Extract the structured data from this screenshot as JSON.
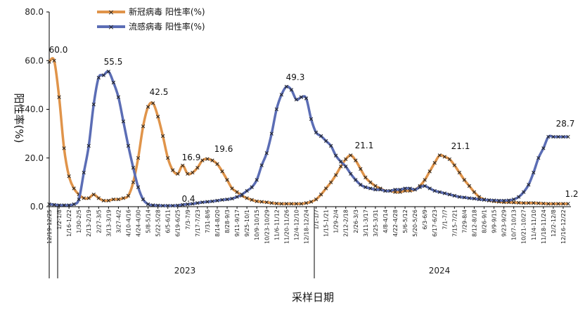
{
  "chart_data": {
    "type": "line",
    "xlabel": "采样日期",
    "ylabel": "阳性率(%)",
    "ylim": [
      0,
      80
    ],
    "yticks": [
      "0.0",
      "20.0",
      "40.0",
      "60.0",
      "80.0"
    ],
    "legend_position": "top-left",
    "grid": false,
    "years": [
      "2023",
      "2024"
    ],
    "categories": [
      "2022-12-19",
      "2022-12-26",
      "2023-01-02",
      "2023-01-09",
      "2023-01-16",
      "2023-01-23",
      "2023-01-30",
      "2023-02-06",
      "2023-02-13",
      "2023-02-20",
      "2023-02-27",
      "2023-03-06",
      "2023-03-13",
      "2023-03-20",
      "2023-03-27",
      "2023-04-03",
      "2023-04-10",
      "2023-04-17",
      "2023-04-24",
      "2023-05-01",
      "2023-05-08",
      "2023-05-15",
      "2023-05-22",
      "2023-05-29",
      "2023-06-05",
      "2023-06-12",
      "2023-06-19",
      "2023-06-26",
      "2023-07-03",
      "2023-07-10",
      "2023-07-17",
      "2023-07-24",
      "2023-07-31",
      "2023-08-07",
      "2023-08-14",
      "2023-08-21",
      "2023-08-28",
      "2023-09-04",
      "2023-09-11",
      "2023-09-18",
      "2023-09-25",
      "2023-10-02",
      "2023-10-09",
      "2023-10-16",
      "2023-10-23",
      "2023-10-30",
      "2023-11-06",
      "2023-11-13",
      "2023-11-20",
      "2023-11-27",
      "2023-12-04",
      "2023-12-11",
      "2023-12-18",
      "2023-12-25",
      "2024-01-01",
      "2024-01-08",
      "2024-01-15",
      "2024-01-22",
      "2024-01-29",
      "2024-02-05",
      "2024-02-12",
      "2024-02-19",
      "2024-02-26",
      "2024-03-04",
      "2024-03-11",
      "2024-03-18",
      "2024-03-25",
      "2024-04-01",
      "2024-04-08",
      "2024-04-15",
      "2024-04-22",
      "2024-04-29",
      "2024-05-06",
      "2024-05-13",
      "2024-05-20",
      "2024-05-27",
      "2024-06-03",
      "2024-06-10",
      "2024-06-17",
      "2024-06-24",
      "2024-07-01",
      "2024-07-08",
      "2024-07-15",
      "2024-07-22",
      "2024-07-29",
      "2024-08-05",
      "2024-08-12",
      "2024-08-19",
      "2024-08-26",
      "2024-09-02",
      "2024-09-09",
      "2024-09-16",
      "2024-09-23",
      "2024-09-30",
      "2024-10-07",
      "2024-10-14",
      "2024-10-21",
      "2024-10-28",
      "2024-11-04",
      "2024-11-11",
      "2024-11-18",
      "2024-11-25",
      "2024-12-02",
      "2024-12-09",
      "2024-12-16",
      "2024-12-23"
    ],
    "tick_labels": [
      "12/19-12/25",
      "1/2-1/8",
      "1/16-1/22",
      "1/30-2/5",
      "2/13-2/19",
      "2/27-3/5",
      "3/13-3/19",
      "3/27-4/2",
      "4/10-4/16",
      "4/24-4/30",
      "5/8-5/14",
      "5/22-5/28",
      "6/5-6/11",
      "6/19-6/25",
      "7/3-7/9",
      "7/17-7/23",
      "7/31-8/6",
      "8/14-8/20",
      "8/28-9/3",
      "9/11-9/17",
      "9/25-10/1",
      "10/9-10/15",
      "10/23-10/29",
      "11/6-11/12",
      "11/20-11/26",
      "12/4-12/10",
      "12/18-12/24",
      "1/1-1/7",
      "1/15-1/21",
      "1/29-2/4",
      "2/12-2/18",
      "2/26-3/3",
      "3/11-3/17",
      "3/25-3/31",
      "4/8-4/14",
      "4/22-4/28",
      "5/6-5/12",
      "5/20-5/26",
      "6/3-6/9",
      "6/17-6/23",
      "7/1-7/7",
      "7/15-7/21",
      "7/29-8/4",
      "8/12-8/18",
      "8/26-9/1",
      "9/9-9/15",
      "9/23-9/29",
      "10/7-10/13",
      "10/21-10/27",
      "11/4-11/10",
      "11/18-11/24",
      "12/2-12/8",
      "12/16-12/22"
    ],
    "series": [
      {
        "name": "新冠病毒 阳性率(%)",
        "color": "#e0944a",
        "marker": "x",
        "values": [
          59.5,
          60.0,
          45.0,
          24.0,
          12.5,
          7.5,
          5.0,
          3.5,
          3.5,
          5.0,
          3.5,
          2.5,
          2.5,
          3.0,
          3.0,
          3.5,
          4.5,
          10.0,
          20.0,
          33.0,
          41.0,
          42.5,
          37.0,
          29.0,
          20.0,
          15.0,
          13.5,
          16.9,
          13.5,
          14.0,
          16.0,
          19.0,
          19.6,
          19.0,
          17.5,
          14.5,
          11.0,
          7.5,
          6.0,
          4.5,
          3.5,
          2.8,
          2.2,
          2.0,
          1.8,
          1.5,
          1.3,
          1.2,
          1.2,
          1.2,
          1.2,
          1.2,
          1.5,
          2.0,
          3.0,
          5.0,
          7.5,
          10.0,
          13.0,
          16.5,
          19.5,
          21.1,
          19.0,
          15.5,
          12.0,
          10.0,
          8.5,
          7.5,
          6.5,
          6.5,
          6.0,
          6.0,
          6.5,
          6.5,
          7.0,
          8.5,
          11.0,
          14.5,
          18.0,
          21.1,
          20.5,
          19.5,
          17.0,
          14.0,
          11.0,
          8.5,
          6.0,
          4.0,
          3.0,
          2.5,
          2.2,
          2.0,
          1.8,
          1.8,
          1.7,
          1.6,
          1.5,
          1.5,
          1.5,
          1.4,
          1.3,
          1.2,
          1.2,
          1.2,
          1.2,
          1.2
        ]
      },
      {
        "name": "流感病毒 阳性率(%)",
        "color": "#5b6db5",
        "marker": "x",
        "values": [
          1.0,
          0.8,
          0.6,
          0.6,
          0.6,
          1.0,
          3.0,
          14.0,
          25.0,
          42.0,
          53.0,
          54.0,
          55.5,
          51.0,
          45.0,
          35.0,
          25.0,
          16.0,
          8.0,
          3.0,
          1.0,
          0.6,
          0.5,
          0.4,
          0.4,
          0.4,
          0.5,
          0.8,
          1.0,
          1.2,
          1.5,
          1.8,
          2.0,
          2.2,
          2.5,
          2.8,
          3.0,
          3.3,
          4.0,
          5.0,
          6.5,
          8.0,
          11.0,
          17.0,
          22.0,
          30.0,
          40.0,
          46.0,
          49.3,
          48.0,
          44.0,
          45.0,
          44.5,
          36.0,
          30.5,
          29.0,
          27.0,
          25.0,
          21.0,
          18.5,
          16.5,
          13.5,
          11.0,
          9.0,
          8.0,
          7.5,
          7.0,
          7.0,
          6.5,
          6.5,
          7.0,
          7.0,
          7.5,
          7.5,
          7.0,
          8.0,
          8.5,
          7.5,
          6.5,
          6.0,
          5.5,
          5.0,
          4.5,
          4.0,
          3.8,
          3.5,
          3.3,
          3.0,
          2.8,
          2.7,
          2.6,
          2.5,
          2.5,
          2.6,
          3.0,
          4.0,
          6.0,
          9.0,
          14.0,
          20.0,
          24.0,
          28.7,
          28.7,
          28.7,
          28.7,
          28.7
        ]
      }
    ],
    "annotations": [
      {
        "series": 0,
        "label": "60.0"
      },
      {
        "series": 1,
        "label": "55.5"
      },
      {
        "series": 0,
        "label": "42.5"
      },
      {
        "series": 1,
        "label": "0.4"
      },
      {
        "series": 0,
        "label": "16.9"
      },
      {
        "series": 0,
        "label": "19.6"
      },
      {
        "series": 1,
        "label": "49.3"
      },
      {
        "series": 0,
        "label": "21.1"
      },
      {
        "series": 0,
        "label": "21.1"
      },
      {
        "series": 1,
        "label": "28.7"
      },
      {
        "series": 0,
        "label": "1.2"
      }
    ]
  }
}
